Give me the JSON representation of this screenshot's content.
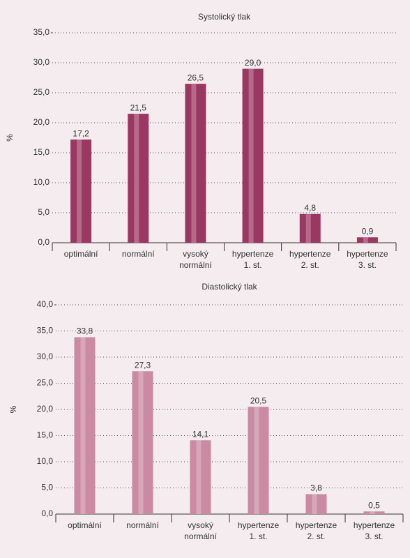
{
  "chart_data": [
    {
      "type": "bar",
      "title": "Systolický tlak",
      "y_label": "%",
      "categories": [
        "optimální",
        "normální",
        "vysoký normální",
        "hypertenze 1. st.",
        "hypertenze 2. st.",
        "hypertenze 3. st."
      ],
      "values": [
        17.2,
        21.5,
        26.5,
        29.0,
        4.8,
        0.9
      ],
      "value_labels": [
        "17,2",
        "21,5",
        "26,5",
        "29,0",
        "4,8",
        "0,9"
      ],
      "color": "#9b3862",
      "ylim": [
        0,
        35
      ],
      "yticks": [
        {
          "value": 0,
          "label": "0,0"
        },
        {
          "value": 5,
          "label": "5,0"
        },
        {
          "value": 10,
          "label": "10,0"
        },
        {
          "value": 15,
          "label": "15,0"
        },
        {
          "value": 20,
          "label": "20,0"
        },
        {
          "value": 25,
          "label": "25,0"
        },
        {
          "value": 30,
          "label": "30,0"
        },
        {
          "value": 35,
          "label": "35,0"
        }
      ],
      "grid": true
    },
    {
      "type": "bar",
      "title": "Diastolický tlak",
      "y_label": "%",
      "categories": [
        "optimální",
        "normální",
        "vysoký normální",
        "hypertenze 1. st.",
        "hypertenze 2. st.",
        "hypertenze 3. st."
      ],
      "values": [
        33.8,
        27.3,
        14.1,
        20.5,
        3.8,
        0.5
      ],
      "value_labels": [
        "33,8",
        "27,3",
        "14,1",
        "20,5",
        "3,8",
        "0,5"
      ],
      "color": "#c98aa2",
      "ylim": [
        0,
        40
      ],
      "yticks": [
        {
          "value": 0,
          "label": "0,0"
        },
        {
          "value": 5,
          "label": "5,0"
        },
        {
          "value": 10,
          "label": "10,0"
        },
        {
          "value": 15,
          "label": "15,0"
        },
        {
          "value": 20,
          "label": "20,0"
        },
        {
          "value": 25,
          "label": "25,0"
        },
        {
          "value": 30,
          "label": "30,0"
        },
        {
          "value": 35,
          "label": "35,0"
        },
        {
          "value": 40,
          "label": "40,0"
        }
      ],
      "grid": true
    }
  ]
}
